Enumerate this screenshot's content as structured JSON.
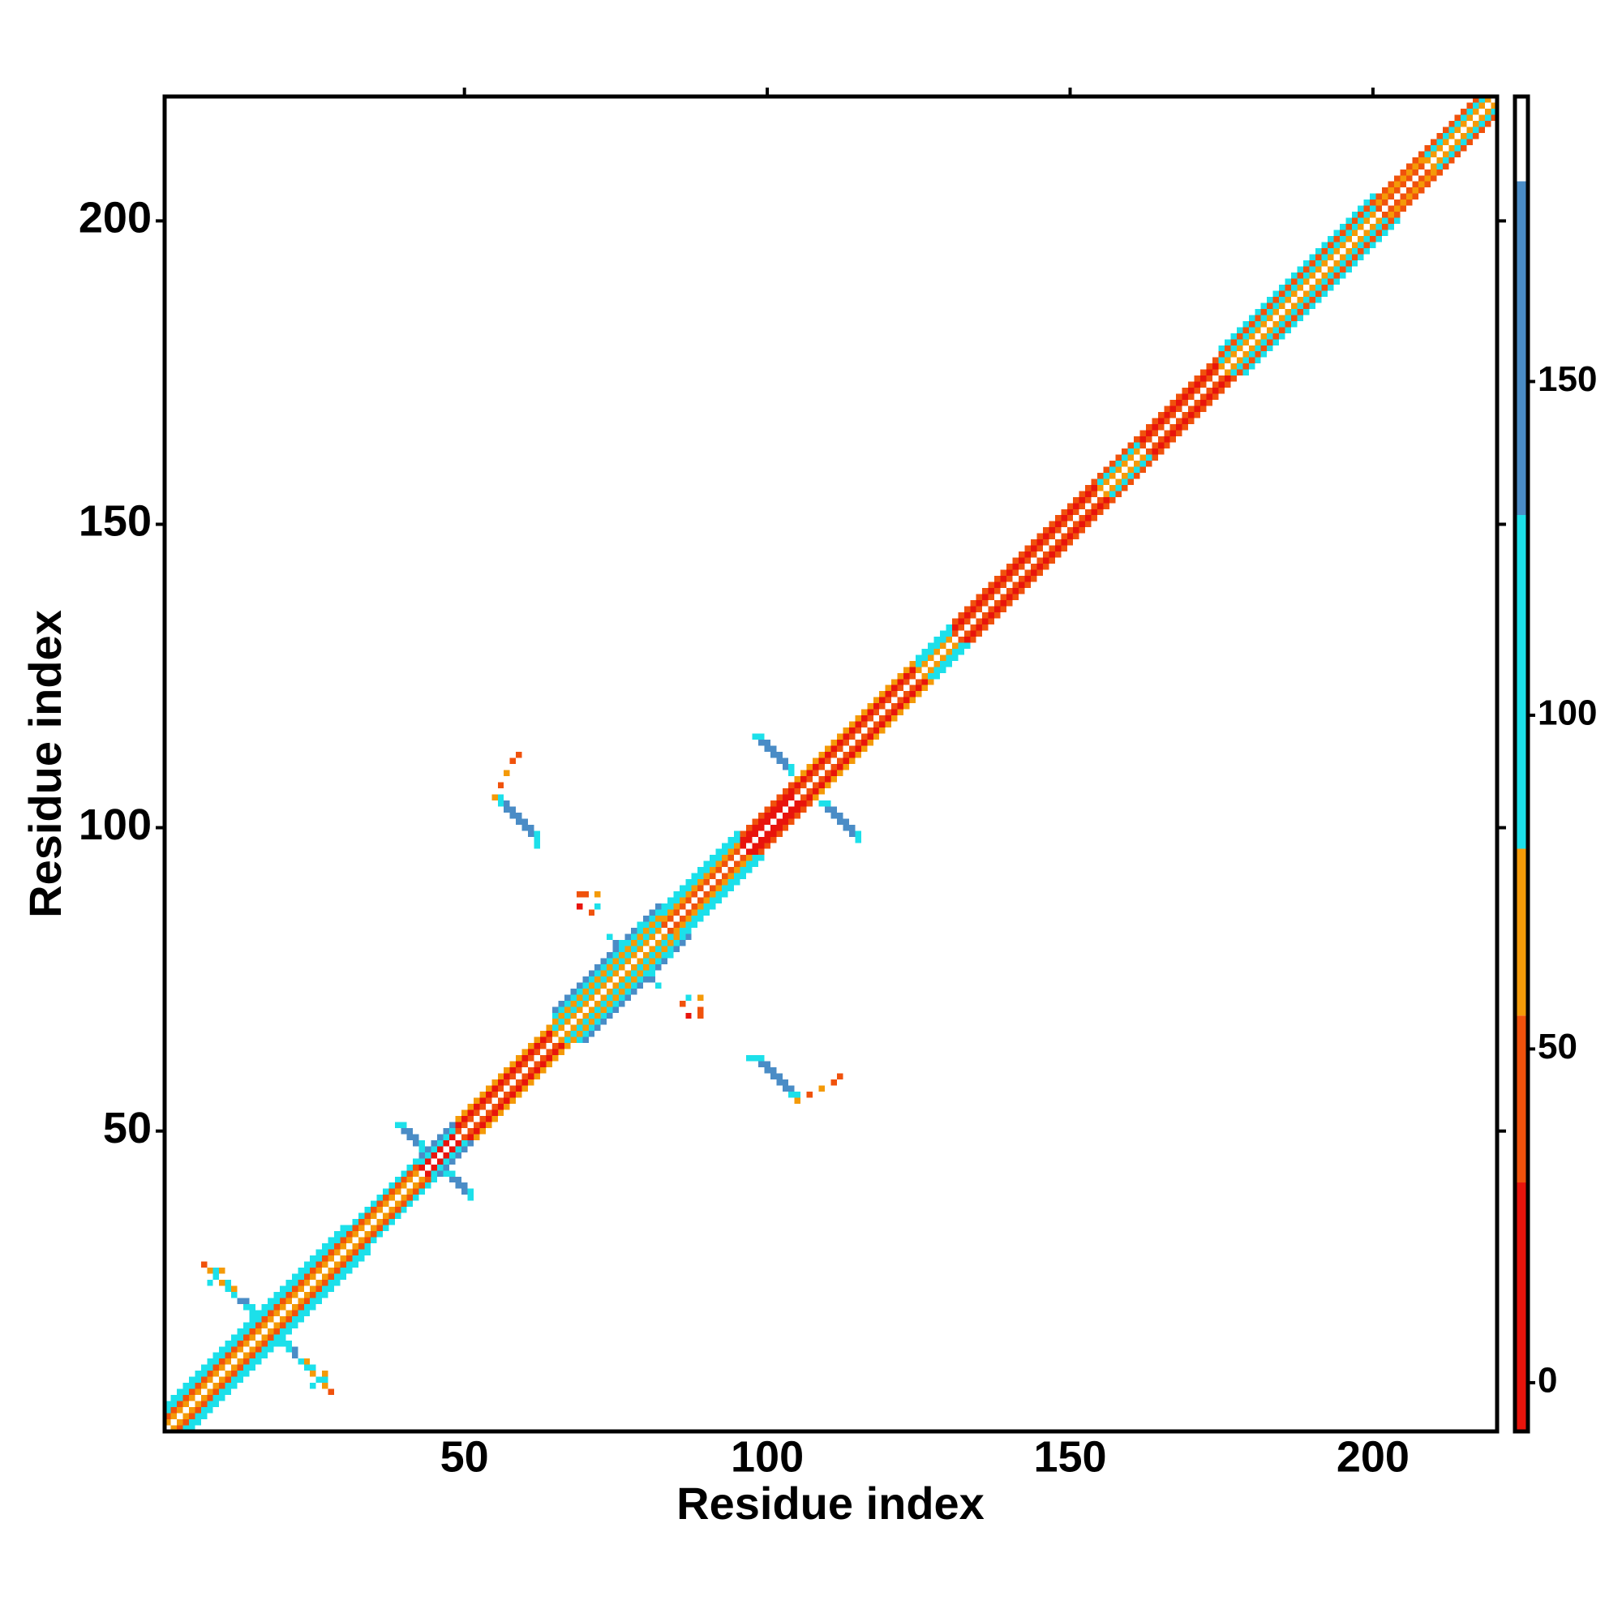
{
  "chart_data": {
    "type": "heatmap",
    "x_label": "Residue index",
    "y_label": "Residue index",
    "xlim": [
      0.5,
      220.5
    ],
    "ylim": [
      0.5,
      220.5
    ],
    "xticks": [
      50,
      100,
      150,
      200
    ],
    "yticks": [
      50,
      100,
      150,
      200
    ],
    "symmetric": true,
    "colorbar": {
      "clim": [
        -7.3,
        192.7
      ],
      "ticks": [
        0,
        50,
        100,
        150
      ],
      "bounds": [
        -7.3,
        30,
        55,
        80,
        130,
        180,
        192.7
      ],
      "colors": [
        "#e8140c",
        "#f0520c",
        "#f49a08",
        "#1ce0ea",
        "#4a8cc6",
        "#ffffff"
      ]
    },
    "runs": {
      "start": [
        1,
        1,
        1,
        1,
        31,
        31,
        31,
        43,
        43,
        43,
        49,
        49,
        49,
        65,
        65,
        65,
        65,
        65,
        83,
        83,
        83,
        83,
        96,
        96,
        96,
        105,
        105,
        105,
        125,
        125,
        125,
        131,
        131,
        131,
        155,
        155,
        155,
        162,
        162,
        162,
        175,
        175,
        175,
        175,
        201,
        201,
        201,
        209,
        209,
        209
      ],
      "end": [
        30,
        30,
        30,
        30,
        42,
        42,
        42,
        48,
        48,
        48,
        64,
        64,
        64,
        82,
        82,
        82,
        82,
        82,
        95,
        95,
        95,
        95,
        104,
        104,
        104,
        124,
        124,
        124,
        130,
        130,
        130,
        154,
        154,
        154,
        161,
        161,
        161,
        174,
        174,
        174,
        200,
        200,
        200,
        200,
        208,
        208,
        208,
        219,
        218,
        217
      ],
      "offset": [
        1,
        2,
        3,
        4,
        1,
        2,
        3,
        1,
        2,
        3,
        1,
        2,
        3,
        1,
        2,
        3,
        4,
        5,
        1,
        2,
        3,
        4,
        1,
        2,
        3,
        1,
        2,
        3,
        1,
        2,
        3,
        1,
        2,
        3,
        1,
        2,
        3,
        1,
        2,
        3,
        1,
        2,
        3,
        4,
        1,
        2,
        3,
        1,
        2,
        3
      ],
      "values": [
        65,
        45,
        100,
        95,
        60,
        40,
        95,
        20,
        95,
        140,
        40,
        15,
        60,
        65,
        100,
        60,
        95,
        140,
        40,
        65,
        95,
        100,
        10,
        20,
        45,
        40,
        15,
        65,
        65,
        95,
        100,
        40,
        15,
        35,
        65,
        95,
        40,
        40,
        15,
        45,
        65,
        100,
        45,
        95,
        45,
        65,
        40,
        65,
        95,
        40
      ]
    },
    "cells": {
      "i": [
        56,
        57,
        58,
        59,
        60,
        61,
        62,
        62,
        55,
        56,
        57,
        58,
        59,
        60,
        61,
        62,
        56,
        57,
        58,
        59,
        98,
        99,
        100,
        101,
        102,
        103,
        104,
        99,
        100,
        101,
        102,
        103,
        104,
        39,
        40,
        41,
        42,
        43,
        40,
        41,
        42,
        43,
        7,
        8,
        9,
        10,
        11,
        12,
        13,
        14,
        15,
        9,
        11,
        12,
        14,
        15,
        8,
        10,
        69,
        70,
        72,
        69,
        71,
        72,
        74,
        75,
        76,
        79,
        80
      ],
      "j": [
        104,
        103,
        102,
        101,
        100,
        99,
        98,
        97,
        105,
        105,
        104,
        103,
        102,
        101,
        100,
        99,
        107,
        109,
        111,
        112,
        115,
        114,
        113,
        112,
        111,
        110,
        109,
        115,
        114,
        113,
        112,
        111,
        110,
        51,
        50,
        49,
        48,
        47,
        51,
        50,
        49,
        48,
        28,
        27,
        26,
        25,
        24,
        23,
        22,
        21,
        20,
        27,
        25,
        24,
        22,
        21,
        25,
        27,
        89,
        89,
        89,
        87,
        86,
        87,
        82,
        81,
        81,
        84,
        84
      ],
      "values": [
        100,
        140,
        150,
        150,
        145,
        140,
        110,
        100,
        65,
        95,
        145,
        150,
        150,
        145,
        140,
        100,
        45,
        60,
        40,
        45,
        90,
        145,
        150,
        150,
        145,
        140,
        100,
        100,
        150,
        150,
        145,
        140,
        95,
        95,
        140,
        145,
        140,
        100,
        100,
        140,
        140,
        95,
        45,
        65,
        95,
        60,
        100,
        95,
        140,
        100,
        95,
        100,
        95,
        65,
        140,
        100,
        95,
        65,
        40,
        45,
        60,
        20,
        40,
        95,
        100,
        140,
        95,
        100,
        95
      ]
    }
  }
}
